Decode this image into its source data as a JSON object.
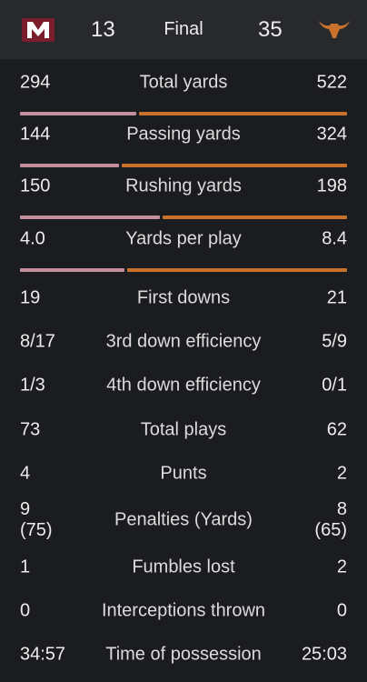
{
  "header": {
    "away_score": "13",
    "status": "Final",
    "home_score": "35"
  },
  "stats": [
    {
      "label": "Total yards",
      "away": "294",
      "home": "522",
      "bar": true
    },
    {
      "label": "Passing yards",
      "away": "144",
      "home": "324",
      "bar": true
    },
    {
      "label": "Rushing yards",
      "away": "150",
      "home": "198",
      "bar": true
    },
    {
      "label": "Yards per play",
      "away": "4.0",
      "home": "8.4",
      "bar": true
    },
    {
      "label": "First downs",
      "away": "19",
      "home": "21",
      "bar": false
    },
    {
      "label": "3rd down efficiency",
      "away": "8/17",
      "home": "5/9",
      "bar": false
    },
    {
      "label": "4th down efficiency",
      "away": "1/3",
      "home": "0/1",
      "bar": false
    },
    {
      "label": "Total plays",
      "away": "73",
      "home": "62",
      "bar": false
    },
    {
      "label": "Punts",
      "away": "4",
      "home": "2",
      "bar": false
    },
    {
      "label": "Penalties (Yards)",
      "away": "9 (75)",
      "home": "8 (65)",
      "bar": false
    },
    {
      "label": "Fumbles lost",
      "away": "1",
      "home": "2",
      "bar": false
    },
    {
      "label": "Interceptions thrown",
      "away": "0",
      "home": "0",
      "bar": false
    },
    {
      "label": "Time of possession",
      "away": "34:57",
      "home": "25:03",
      "bar": false
    }
  ],
  "colors": {
    "away": "#c48e9f",
    "home": "#c8722c"
  }
}
